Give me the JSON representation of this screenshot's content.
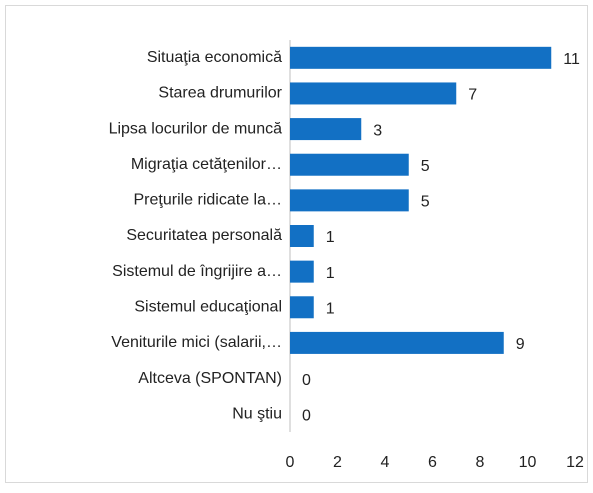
{
  "chart_data": {
    "type": "bar",
    "orientation": "horizontal",
    "categories": [
      "Situaţia economică",
      "Starea drumurilor",
      "Lipsa locurilor de muncă",
      "Migraţia cetăţenilor…",
      "Preţurile ridicate la…",
      "Securitatea personală",
      "Sistemul de îngrijire a…",
      "Sistemul educaţional",
      "Veniturile mici (salarii,…",
      "Altceva (SPONTAN)",
      "Nu ştiu"
    ],
    "values": [
      11,
      7,
      3,
      5,
      5,
      1,
      1,
      1,
      9,
      0,
      0
    ],
    "color": "#1270c4",
    "xlim": [
      0,
      12
    ],
    "xticks": [
      0,
      2,
      4,
      6,
      8,
      10,
      12
    ],
    "grid": false
  }
}
